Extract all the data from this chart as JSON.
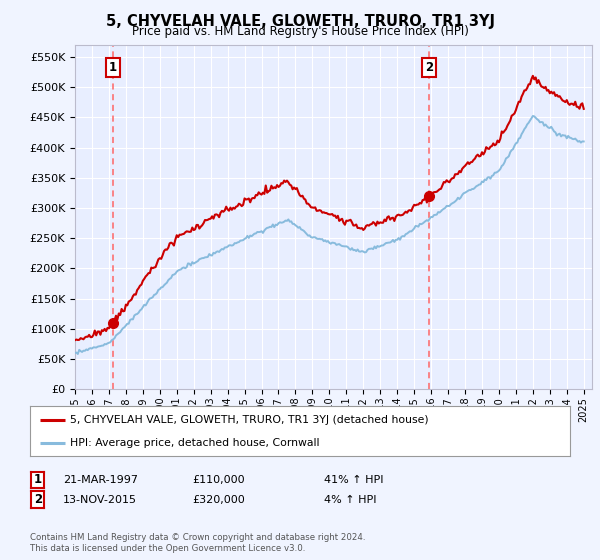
{
  "title": "5, CHYVELAH VALE, GLOWETH, TRURO, TR1 3YJ",
  "subtitle": "Price paid vs. HM Land Registry's House Price Index (HPI)",
  "ylim": [
    0,
    570000
  ],
  "yticks": [
    0,
    50000,
    100000,
    150000,
    200000,
    250000,
    300000,
    350000,
    400000,
    450000,
    500000,
    550000
  ],
  "ytick_labels": [
    "£0",
    "£50K",
    "£100K",
    "£150K",
    "£200K",
    "£250K",
    "£300K",
    "£350K",
    "£400K",
    "£450K",
    "£500K",
    "£550K"
  ],
  "fig_bg": "#f0f4ff",
  "plot_bg": "#e8eeff",
  "grid_color": "#ffffff",
  "sale1_date": 1997.22,
  "sale1_price": 110000,
  "sale2_date": 2015.87,
  "sale2_price": 320000,
  "sale1_date_str": "21-MAR-1997",
  "sale1_price_str": "£110,000",
  "sale1_pct": "41% ↑ HPI",
  "sale2_date_str": "13-NOV-2015",
  "sale2_price_str": "£320,000",
  "sale2_pct": "4% ↑ HPI",
  "legend_line1": "5, CHYVELAH VALE, GLOWETH, TRURO, TR1 3YJ (detached house)",
  "legend_line2": "HPI: Average price, detached house, Cornwall",
  "footer": "Contains HM Land Registry data © Crown copyright and database right 2024.\nThis data is licensed under the Open Government Licence v3.0.",
  "sale_color": "#cc0000",
  "hpi_color": "#88bbdd",
  "dash_color": "#ff6666",
  "marker_color": "#cc0000",
  "sale1_label": "1",
  "sale2_label": "2"
}
